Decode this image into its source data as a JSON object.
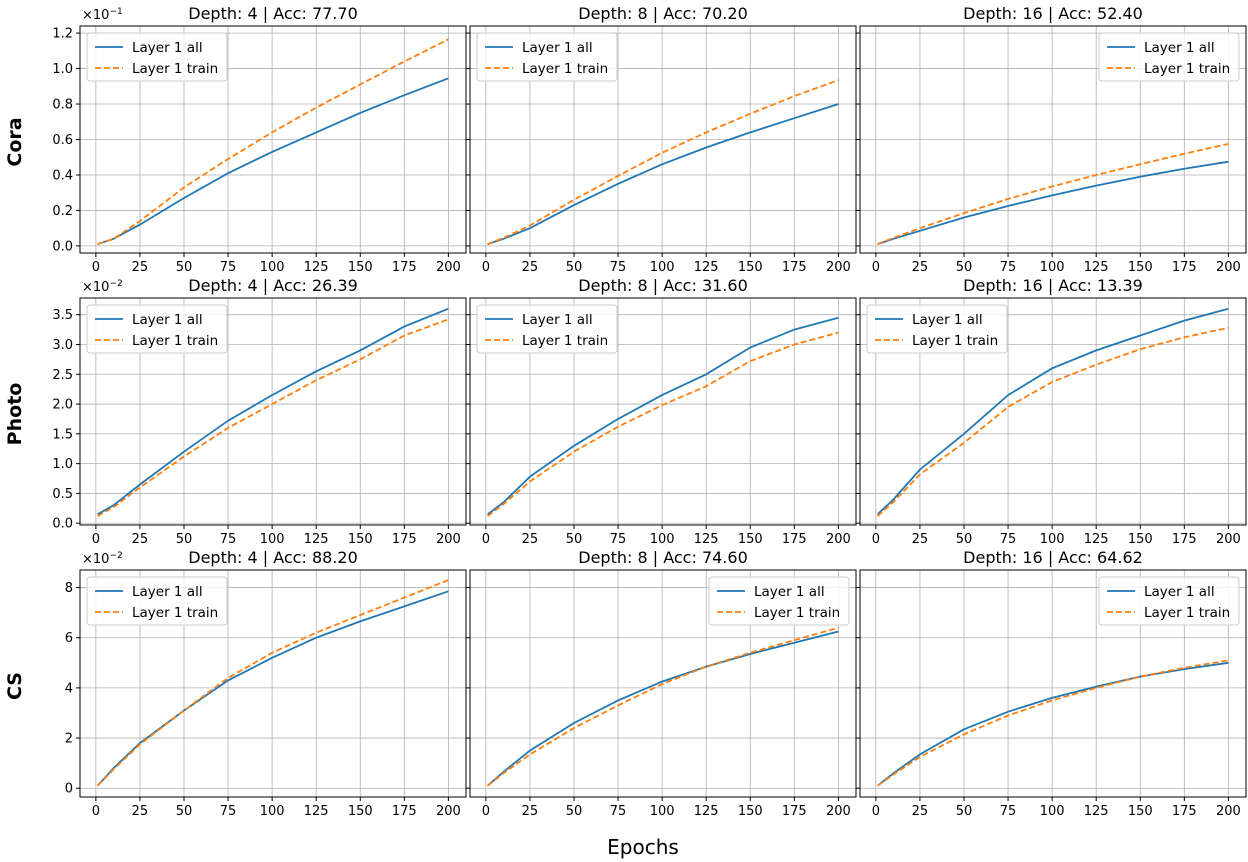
{
  "figure": {
    "xlabel": "Epochs",
    "row_labels": [
      "Cora",
      "Photo",
      "CS"
    ],
    "row_scale_labels": [
      {
        "base": "×10",
        "exp": "−1"
      },
      {
        "base": "×10",
        "exp": "−2"
      },
      {
        "base": "×10",
        "exp": "−2"
      }
    ],
    "colors": {
      "all": "#1f77b4",
      "train": "#ff7f0e",
      "grid": "#b0b0b0"
    }
  },
  "chart_data": [
    {
      "type": "line",
      "row": 0,
      "col": 0,
      "title": "Depth: 4 | Acc: 77.70",
      "legend": "top-left",
      "x": [
        1,
        10,
        25,
        50,
        75,
        100,
        125,
        150,
        175,
        200
      ],
      "xlim": [
        -9,
        210
      ],
      "xticks": [
        0,
        25,
        50,
        75,
        100,
        125,
        150,
        175,
        200
      ],
      "ylim": [
        -0.04,
        1.24
      ],
      "yticks": [
        0.0,
        0.2,
        0.4,
        0.6,
        0.8,
        1.0,
        1.2
      ],
      "ytick_labels": [
        "0.0",
        "0.2",
        "0.4",
        "0.6",
        "0.8",
        "1.0",
        "1.2"
      ],
      "series": [
        {
          "name": "Layer 1 all",
          "style": "solid",
          "values": [
            0.01,
            0.04,
            0.12,
            0.27,
            0.41,
            0.53,
            0.64,
            0.75,
            0.85,
            0.945
          ]
        },
        {
          "name": "Layer 1 train",
          "style": "dashed",
          "values": [
            0.01,
            0.04,
            0.14,
            0.33,
            0.49,
            0.64,
            0.78,
            0.91,
            1.04,
            1.165
          ]
        }
      ]
    },
    {
      "type": "line",
      "row": 0,
      "col": 1,
      "title": "Depth: 8 | Acc: 70.20",
      "legend": "top-left",
      "x": [
        1,
        10,
        25,
        50,
        75,
        100,
        125,
        150,
        175,
        200
      ],
      "xlim": [
        -9,
        210
      ],
      "xticks": [
        0,
        25,
        50,
        75,
        100,
        125,
        150,
        175,
        200
      ],
      "ylim": [
        -0.04,
        1.24
      ],
      "yticks": [
        0.0,
        0.2,
        0.4,
        0.6,
        0.8,
        1.0,
        1.2
      ],
      "ytick_labels": [],
      "series": [
        {
          "name": "Layer 1 all",
          "style": "solid",
          "values": [
            0.01,
            0.04,
            0.1,
            0.23,
            0.35,
            0.46,
            0.555,
            0.64,
            0.72,
            0.8
          ]
        },
        {
          "name": "Layer 1 train",
          "style": "dashed",
          "values": [
            0.01,
            0.045,
            0.115,
            0.26,
            0.395,
            0.525,
            0.64,
            0.745,
            0.845,
            0.935
          ]
        }
      ]
    },
    {
      "type": "line",
      "row": 0,
      "col": 2,
      "title": "Depth: 16 | Acc: 52.40",
      "legend": "top-right",
      "x": [
        1,
        10,
        25,
        50,
        75,
        100,
        125,
        150,
        175,
        200
      ],
      "xlim": [
        -9,
        210
      ],
      "xticks": [
        0,
        25,
        50,
        75,
        100,
        125,
        150,
        175,
        200
      ],
      "ylim": [
        -0.04,
        1.24
      ],
      "yticks": [
        0.0,
        0.2,
        0.4,
        0.6,
        0.8,
        1.0,
        1.2
      ],
      "ytick_labels": [],
      "series": [
        {
          "name": "Layer 1 all",
          "style": "solid",
          "values": [
            0.01,
            0.04,
            0.085,
            0.16,
            0.225,
            0.285,
            0.34,
            0.39,
            0.435,
            0.475
          ]
        },
        {
          "name": "Layer 1 train",
          "style": "dashed",
          "values": [
            0.01,
            0.045,
            0.1,
            0.185,
            0.265,
            0.335,
            0.4,
            0.46,
            0.52,
            0.575
          ]
        }
      ]
    },
    {
      "type": "line",
      "row": 1,
      "col": 0,
      "title": "Depth: 4 | Acc: 26.39",
      "legend": "top-left",
      "x": [
        1,
        10,
        25,
        50,
        75,
        100,
        125,
        150,
        175,
        200
      ],
      "xlim": [
        -9,
        210
      ],
      "xticks": [
        0,
        25,
        50,
        75,
        100,
        125,
        150,
        175,
        200
      ],
      "ylim": [
        -0.03,
        3.78
      ],
      "yticks": [
        0.0,
        0.5,
        1.0,
        1.5,
        2.0,
        2.5,
        3.0,
        3.5
      ],
      "ytick_labels": [
        "0.0",
        "0.5",
        "1.0",
        "1.5",
        "2.0",
        "2.5",
        "3.0",
        "3.5"
      ],
      "series": [
        {
          "name": "Layer 1 all",
          "style": "solid",
          "values": [
            0.15,
            0.3,
            0.65,
            1.2,
            1.72,
            2.15,
            2.55,
            2.9,
            3.3,
            3.6
          ]
        },
        {
          "name": "Layer 1 train",
          "style": "dashed",
          "values": [
            0.12,
            0.27,
            0.6,
            1.12,
            1.6,
            2.0,
            2.4,
            2.75,
            3.15,
            3.42
          ]
        }
      ]
    },
    {
      "type": "line",
      "row": 1,
      "col": 1,
      "title": "Depth: 8 | Acc: 31.60",
      "legend": "top-left",
      "x": [
        1,
        10,
        25,
        50,
        75,
        100,
        125,
        150,
        175,
        200
      ],
      "xlim": [
        -9,
        210
      ],
      "xticks": [
        0,
        25,
        50,
        75,
        100,
        125,
        150,
        175,
        200
      ],
      "ylim": [
        -0.03,
        3.78
      ],
      "yticks": [
        0.0,
        0.5,
        1.0,
        1.5,
        2.0,
        2.5,
        3.0,
        3.5
      ],
      "ytick_labels": [],
      "series": [
        {
          "name": "Layer 1 all",
          "style": "solid",
          "values": [
            0.15,
            0.35,
            0.78,
            1.3,
            1.75,
            2.15,
            2.5,
            2.95,
            3.25,
            3.45
          ]
        },
        {
          "name": "Layer 1 train",
          "style": "dashed",
          "values": [
            0.12,
            0.32,
            0.7,
            1.2,
            1.62,
            1.98,
            2.3,
            2.72,
            3.0,
            3.2
          ]
        }
      ]
    },
    {
      "type": "line",
      "row": 1,
      "col": 2,
      "title": "Depth: 16 | Acc: 13.39",
      "legend": "top-left",
      "x": [
        1,
        10,
        25,
        50,
        75,
        100,
        125,
        150,
        175,
        200
      ],
      "xlim": [
        -9,
        210
      ],
      "xticks": [
        0,
        25,
        50,
        75,
        100,
        125,
        150,
        175,
        200
      ],
      "ylim": [
        -0.03,
        3.78
      ],
      "yticks": [
        0.0,
        0.5,
        1.0,
        1.5,
        2.0,
        2.5,
        3.0,
        3.5
      ],
      "ytick_labels": [],
      "series": [
        {
          "name": "Layer 1 all",
          "style": "solid",
          "values": [
            0.15,
            0.4,
            0.9,
            1.5,
            2.15,
            2.6,
            2.9,
            3.15,
            3.4,
            3.6
          ]
        },
        {
          "name": "Layer 1 train",
          "style": "dashed",
          "values": [
            0.12,
            0.36,
            0.82,
            1.35,
            1.95,
            2.37,
            2.66,
            2.92,
            3.12,
            3.28
          ]
        }
      ]
    },
    {
      "type": "line",
      "row": 2,
      "col": 0,
      "title": "Depth: 4 | Acc: 88.20",
      "legend": "top-left",
      "x": [
        1,
        10,
        25,
        50,
        75,
        100,
        125,
        150,
        175,
        200
      ],
      "xlim": [
        -9,
        210
      ],
      "xticks": [
        0,
        25,
        50,
        75,
        100,
        125,
        150,
        175,
        200
      ],
      "ylim": [
        -0.35,
        8.7
      ],
      "yticks": [
        0,
        2,
        4,
        6,
        8
      ],
      "ytick_labels": [
        "0",
        "2",
        "4",
        "6",
        "8"
      ],
      "series": [
        {
          "name": "Layer 1 all",
          "style": "solid",
          "values": [
            0.1,
            0.8,
            1.8,
            3.1,
            4.3,
            5.2,
            6.0,
            6.65,
            7.25,
            7.85
          ]
        },
        {
          "name": "Layer 1 train",
          "style": "dashed",
          "values": [
            0.1,
            0.75,
            1.75,
            3.1,
            4.4,
            5.4,
            6.2,
            6.9,
            7.6,
            8.3
          ]
        }
      ]
    },
    {
      "type": "line",
      "row": 2,
      "col": 1,
      "title": "Depth: 8 | Acc: 74.60",
      "legend": "top-right",
      "x": [
        1,
        10,
        25,
        50,
        75,
        100,
        125,
        150,
        175,
        200
      ],
      "xlim": [
        -9,
        210
      ],
      "xticks": [
        0,
        25,
        50,
        75,
        100,
        125,
        150,
        175,
        200
      ],
      "ylim": [
        -0.35,
        8.7
      ],
      "yticks": [
        0,
        2,
        4,
        6,
        8
      ],
      "ytick_labels": [],
      "series": [
        {
          "name": "Layer 1 all",
          "style": "solid",
          "values": [
            0.1,
            0.65,
            1.5,
            2.6,
            3.5,
            4.25,
            4.85,
            5.35,
            5.8,
            6.25
          ]
        },
        {
          "name": "Layer 1 train",
          "style": "dashed",
          "values": [
            0.1,
            0.6,
            1.35,
            2.4,
            3.3,
            4.15,
            4.85,
            5.4,
            5.9,
            6.4
          ]
        }
      ]
    },
    {
      "type": "line",
      "row": 2,
      "col": 2,
      "title": "Depth: 16 | Acc: 64.62",
      "legend": "top-right",
      "x": [
        1,
        10,
        25,
        50,
        75,
        100,
        125,
        150,
        175,
        200
      ],
      "xlim": [
        -9,
        210
      ],
      "xticks": [
        0,
        25,
        50,
        75,
        100,
        125,
        150,
        175,
        200
      ],
      "ylim": [
        -0.35,
        8.7
      ],
      "yticks": [
        0,
        2,
        4,
        6,
        8
      ],
      "ytick_labels": [],
      "series": [
        {
          "name": "Layer 1 all",
          "style": "solid",
          "values": [
            0.1,
            0.6,
            1.35,
            2.35,
            3.05,
            3.6,
            4.05,
            4.45,
            4.75,
            5.0
          ]
        },
        {
          "name": "Layer 1 train",
          "style": "dashed",
          "values": [
            0.1,
            0.55,
            1.25,
            2.15,
            2.9,
            3.5,
            4.0,
            4.45,
            4.8,
            5.1
          ]
        }
      ]
    }
  ]
}
